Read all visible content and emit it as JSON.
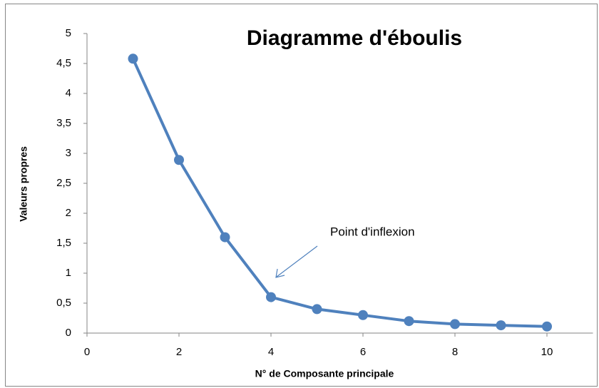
{
  "chart_data": {
    "type": "line",
    "title": "Diagramme d'éboulis",
    "x_label": "N° de Composante  principale",
    "y_label": "Valeurs propres",
    "annotation": "Point d'inflexion",
    "x": [
      1,
      2,
      3,
      4,
      5,
      6,
      7,
      8,
      9,
      10
    ],
    "series": [
      {
        "color": "#4f81bd",
        "values": [
          4.58,
          2.89,
          1.6,
          0.6,
          0.4,
          0.3,
          0.2,
          0.15,
          0.13,
          0.11
        ]
      }
    ],
    "xlim": [
      0,
      11
    ],
    "xticks": [
      0,
      2,
      4,
      6,
      8,
      10
    ],
    "ylim": [
      0,
      5
    ],
    "yticks": [
      0,
      {
        "value": 0.5,
        "label": "0,5"
      },
      1,
      {
        "value": 1.5,
        "label": "1,5"
      },
      2,
      {
        "value": 2.5,
        "label": "2,5"
      },
      3,
      {
        "value": 3.5,
        "label": "3,5"
      },
      4,
      {
        "value": 4.5,
        "label": "4,5"
      },
      5
    ],
    "grid": false
  }
}
